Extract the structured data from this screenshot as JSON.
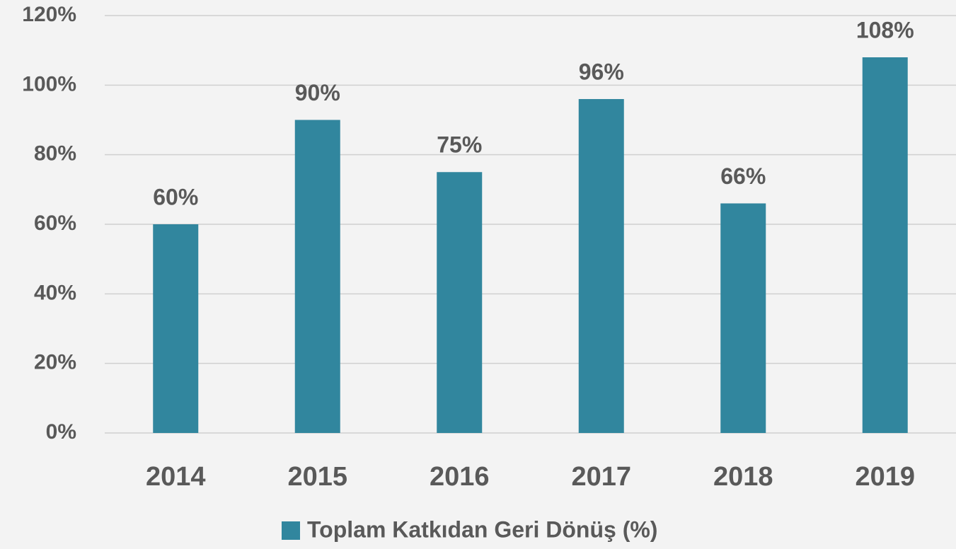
{
  "chart_data": {
    "type": "bar",
    "categories": [
      "2014",
      "2015",
      "2016",
      "2017",
      "2018",
      "2019"
    ],
    "series": [
      {
        "name": "Toplam Katkıdan Geri Dönüş (%)",
        "color": "#31869e",
        "values": [
          60,
          90,
          75,
          96,
          66,
          108
        ],
        "value_labels": [
          "60%",
          "90%",
          "75%",
          "96%",
          "66%",
          "108%"
        ]
      }
    ],
    "ylim": [
      0,
      120
    ],
    "yticks": [
      {
        "value": 0,
        "label": "0%"
      },
      {
        "value": 20,
        "label": "20%"
      },
      {
        "value": 40,
        "label": "40%"
      },
      {
        "value": 60,
        "label": "60%"
      },
      {
        "value": 80,
        "label": "80%"
      },
      {
        "value": 100,
        "label": "100%"
      },
      {
        "value": 120,
        "label": "120%"
      }
    ],
    "grid": true,
    "legend": "bottom"
  }
}
